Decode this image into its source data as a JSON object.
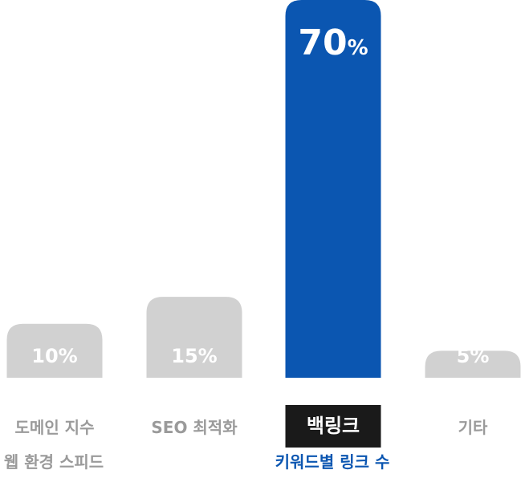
{
  "chart_data": {
    "type": "bar",
    "categories": [
      "도메인 지수",
      "SEO 최적화",
      "백링크",
      "기타"
    ],
    "values": [
      10,
      15,
      70,
      5
    ],
    "value_labels": [
      "10%",
      "15%",
      "70",
      "5%"
    ],
    "highlight_percent_sign": "%",
    "highlight_index": 2,
    "ylim": [
      0,
      70
    ],
    "grid": false,
    "sub_labels": [
      "웹 환경 스피드",
      "키워드별 링크 수"
    ],
    "colors": {
      "bar_default": "#d1d1d1",
      "bar_highlight": "#0b56b1",
      "value_default": "#ffffff",
      "value_highlight": "#ffffff",
      "label_default": "#9a9a9a",
      "label_highlight_bg": "#1a1a1a",
      "label_highlight_text": "#ffffff",
      "sub_label_default": "#9a9a9a",
      "sub_label_highlight": "#0b56b1"
    }
  }
}
